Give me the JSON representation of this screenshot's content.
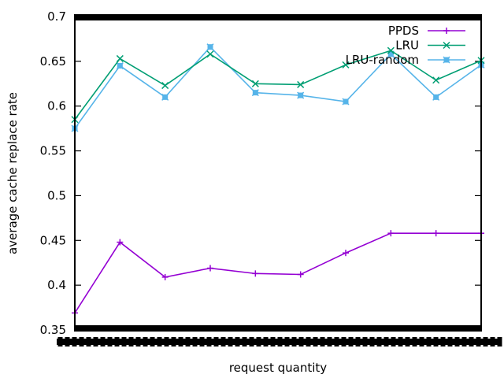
{
  "chart_data": {
    "type": "line",
    "title": "",
    "xlabel": "request quantity",
    "ylabel": "average cache replace rate",
    "ylim": [
      0.35,
      0.7
    ],
    "yticks": [
      0.35,
      0.4,
      0.45,
      0.5,
      0.55,
      0.6,
      0.65,
      0.7
    ],
    "ytick_labels": [
      "0.35",
      "0.4",
      "0.45",
      "0.5",
      "0.55",
      "0.6",
      "0.65",
      "0.7"
    ],
    "x": [
      1,
      2,
      3,
      4,
      5,
      6,
      7,
      8,
      9,
      10
    ],
    "xlim": [
      1,
      10
    ],
    "grid": false,
    "legend_position": "top-right",
    "series": [
      {
        "name": "PPDS",
        "color": "#9400d3",
        "marker": "plus",
        "values": [
          0.369,
          0.448,
          0.409,
          0.419,
          0.413,
          0.412,
          0.436,
          0.458,
          0.458,
          0.458
        ]
      },
      {
        "name": "LRU",
        "color": "#009e73",
        "marker": "cross",
        "values": [
          0.585,
          0.653,
          0.623,
          0.658,
          0.625,
          0.624,
          0.646,
          0.662,
          0.629,
          0.651
        ]
      },
      {
        "name": "LRU-random",
        "color": "#56b4e9",
        "marker": "square-cross",
        "values": [
          0.575,
          0.645,
          0.61,
          0.666,
          0.615,
          0.612,
          0.605,
          0.658,
          0.61,
          0.646
        ]
      }
    ]
  }
}
